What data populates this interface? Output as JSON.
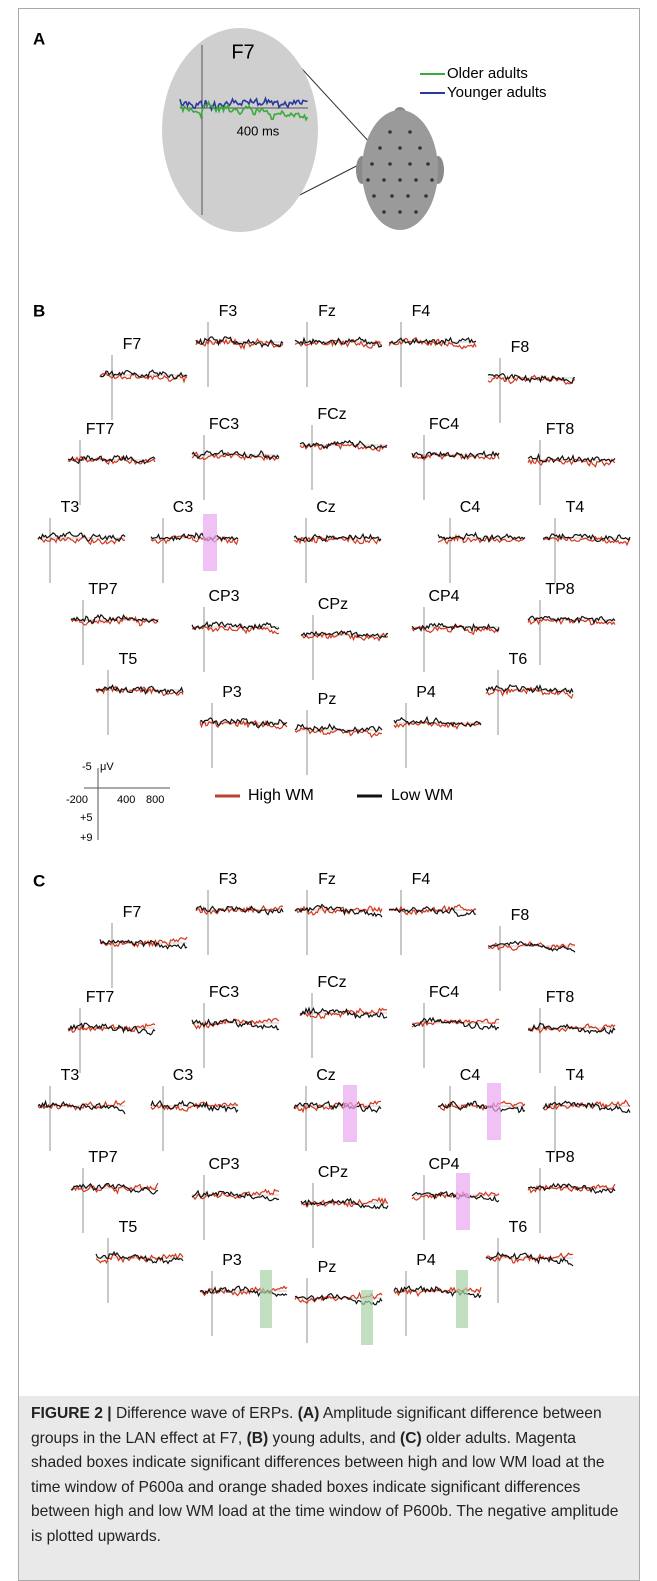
{
  "panel_a": {
    "label": "A",
    "electrode": "F7",
    "time_label": "400  ms",
    "legend": [
      "Older adults",
      "Younger adults"
    ]
  },
  "panel_b": {
    "label": "B",
    "electrodes": [
      "F3",
      "Fz",
      "F4",
      "F7",
      "F8",
      "FT7",
      "FC3",
      "FCz",
      "FC4",
      "FT8",
      "T3",
      "C3",
      "Cz",
      "C4",
      "T4",
      "TP7",
      "CP3",
      "CPz",
      "CP4",
      "TP8",
      "T5",
      "T6",
      "P3",
      "Pz",
      "P4"
    ],
    "scale": {
      "amplitude_top": "-5",
      "unit": "μV",
      "time_start": "-200",
      "time_mid": "400",
      "time_end": "800",
      "amplitude_mid": "+5",
      "amplitude_bottom": "+9"
    },
    "legend": [
      "High WM",
      "Low WM"
    ]
  },
  "panel_c": {
    "label": "C",
    "electrodes": [
      "F3",
      "Fz",
      "F4",
      "F7",
      "F8",
      "FT7",
      "FC3",
      "FCz",
      "FC4",
      "FT8",
      "T3",
      "C3",
      "Cz",
      "C4",
      "T4",
      "TP7",
      "CP3",
      "CPz",
      "CP4",
      "TP8",
      "T5",
      "T6",
      "P3",
      "Pz",
      "P4"
    ]
  },
  "caption": {
    "figure_label": "FIGURE 2 |",
    "text_1": " Difference wave of ERPs. ",
    "a_label": "(A)",
    "text_2": " Amplitude significant difference between groups in the LAN effect at F7, ",
    "b_label": "(B)",
    "text_3": " young adults, and ",
    "c_label": "(C)",
    "text_4": " older adults. Magenta shaded boxes indicate significant differences between high and low WM load at the time window of P600a and orange shaded boxes indicate significant differences between high and low WM load at the time window of P600b. The negative amplitude is plotted upwards."
  }
}
